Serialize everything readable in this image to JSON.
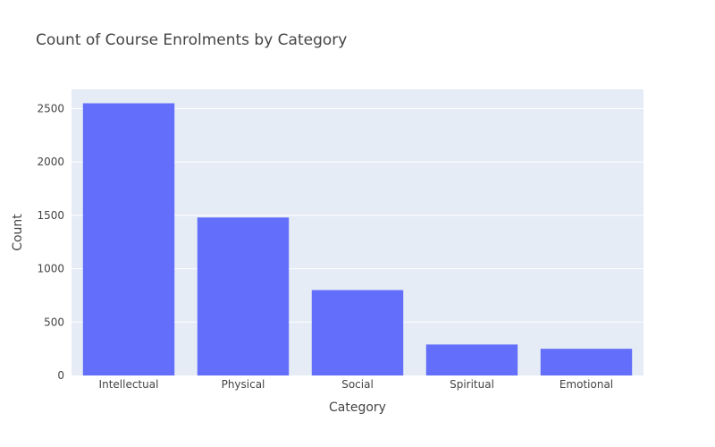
{
  "chart_data": {
    "type": "bar",
    "title": "Count of Course Enrolments by Category",
    "xlabel": "Category",
    "ylabel": "Count",
    "categories": [
      "Intellectual",
      "Physical",
      "Social",
      "Spiritual",
      "Emotional"
    ],
    "values": [
      2550,
      1480,
      800,
      290,
      250
    ],
    "ylim": [
      0,
      2680
    ],
    "yticks": [
      0,
      500,
      1000,
      1500,
      2000,
      2500
    ],
    "grid": true,
    "legend": "none",
    "colors": {
      "bar": "#636efa",
      "plot_background": "#e5ecf6",
      "grid": "#ffffff"
    }
  }
}
